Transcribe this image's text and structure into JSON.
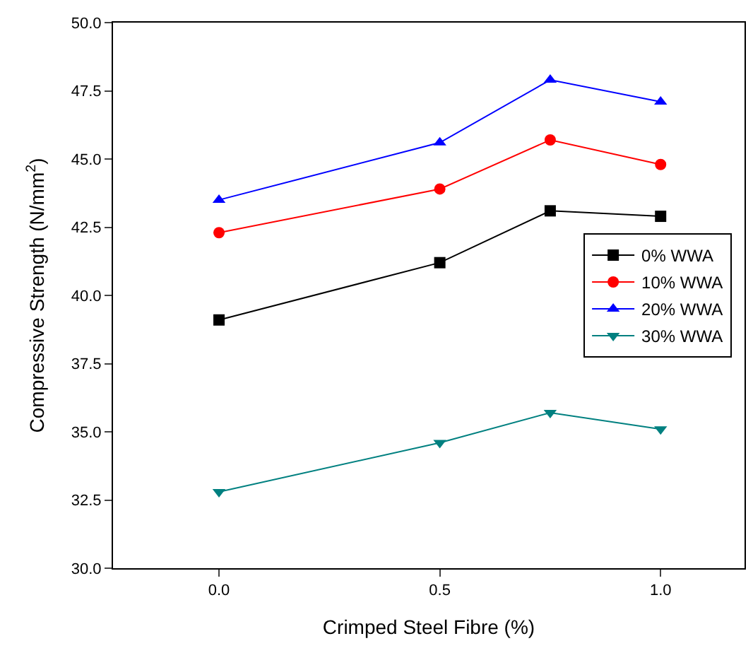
{
  "chart_data": {
    "type": "line",
    "xlabel": "Crimped Steel Fibre (%)",
    "ylabel": "Compressive Strength (N/mm$^{2}$)",
    "x": [
      0,
      0.5,
      0.75,
      1.0
    ],
    "series": [
      {
        "name": "0% WWA",
        "color": "#000000",
        "marker": "square",
        "values": [
          39.1,
          41.2,
          43.1,
          42.9
        ]
      },
      {
        "name": "10% WWA",
        "color": "#ff0000",
        "marker": "circle",
        "values": [
          42.3,
          43.9,
          45.7,
          44.8
        ]
      },
      {
        "name": "20% WWA",
        "color": "#0000ff",
        "marker": "triangle",
        "values": [
          43.5,
          45.6,
          47.9,
          47.1
        ]
      },
      {
        "name": "30% WWA",
        "color": "#008080",
        "marker": "triangle-down",
        "values": [
          32.8,
          34.6,
          35.7,
          35.1
        ]
      }
    ],
    "xlim": [
      -0.24,
      1.19
    ],
    "xticks": [
      {
        "value": 0,
        "label": "0.0"
      },
      {
        "value": 0.5,
        "label": "0.5"
      },
      {
        "value": 1.0,
        "label": "1.0"
      }
    ],
    "ylim": [
      30,
      50
    ],
    "yticks": [
      {
        "value": 30,
        "label": "30.0"
      },
      {
        "value": 32.5,
        "label": "32.5"
      },
      {
        "value": 35,
        "label": "35.0"
      },
      {
        "value": 37.5,
        "label": "37.5"
      },
      {
        "value": 40,
        "label": "40.0"
      },
      {
        "value": 42.5,
        "label": "42.5"
      },
      {
        "value": 45,
        "label": "45.0"
      },
      {
        "value": 47.5,
        "label": "47.5"
      },
      {
        "value": 50,
        "label": "50.0"
      }
    ],
    "legend": "right",
    "line_style": "solid"
  }
}
